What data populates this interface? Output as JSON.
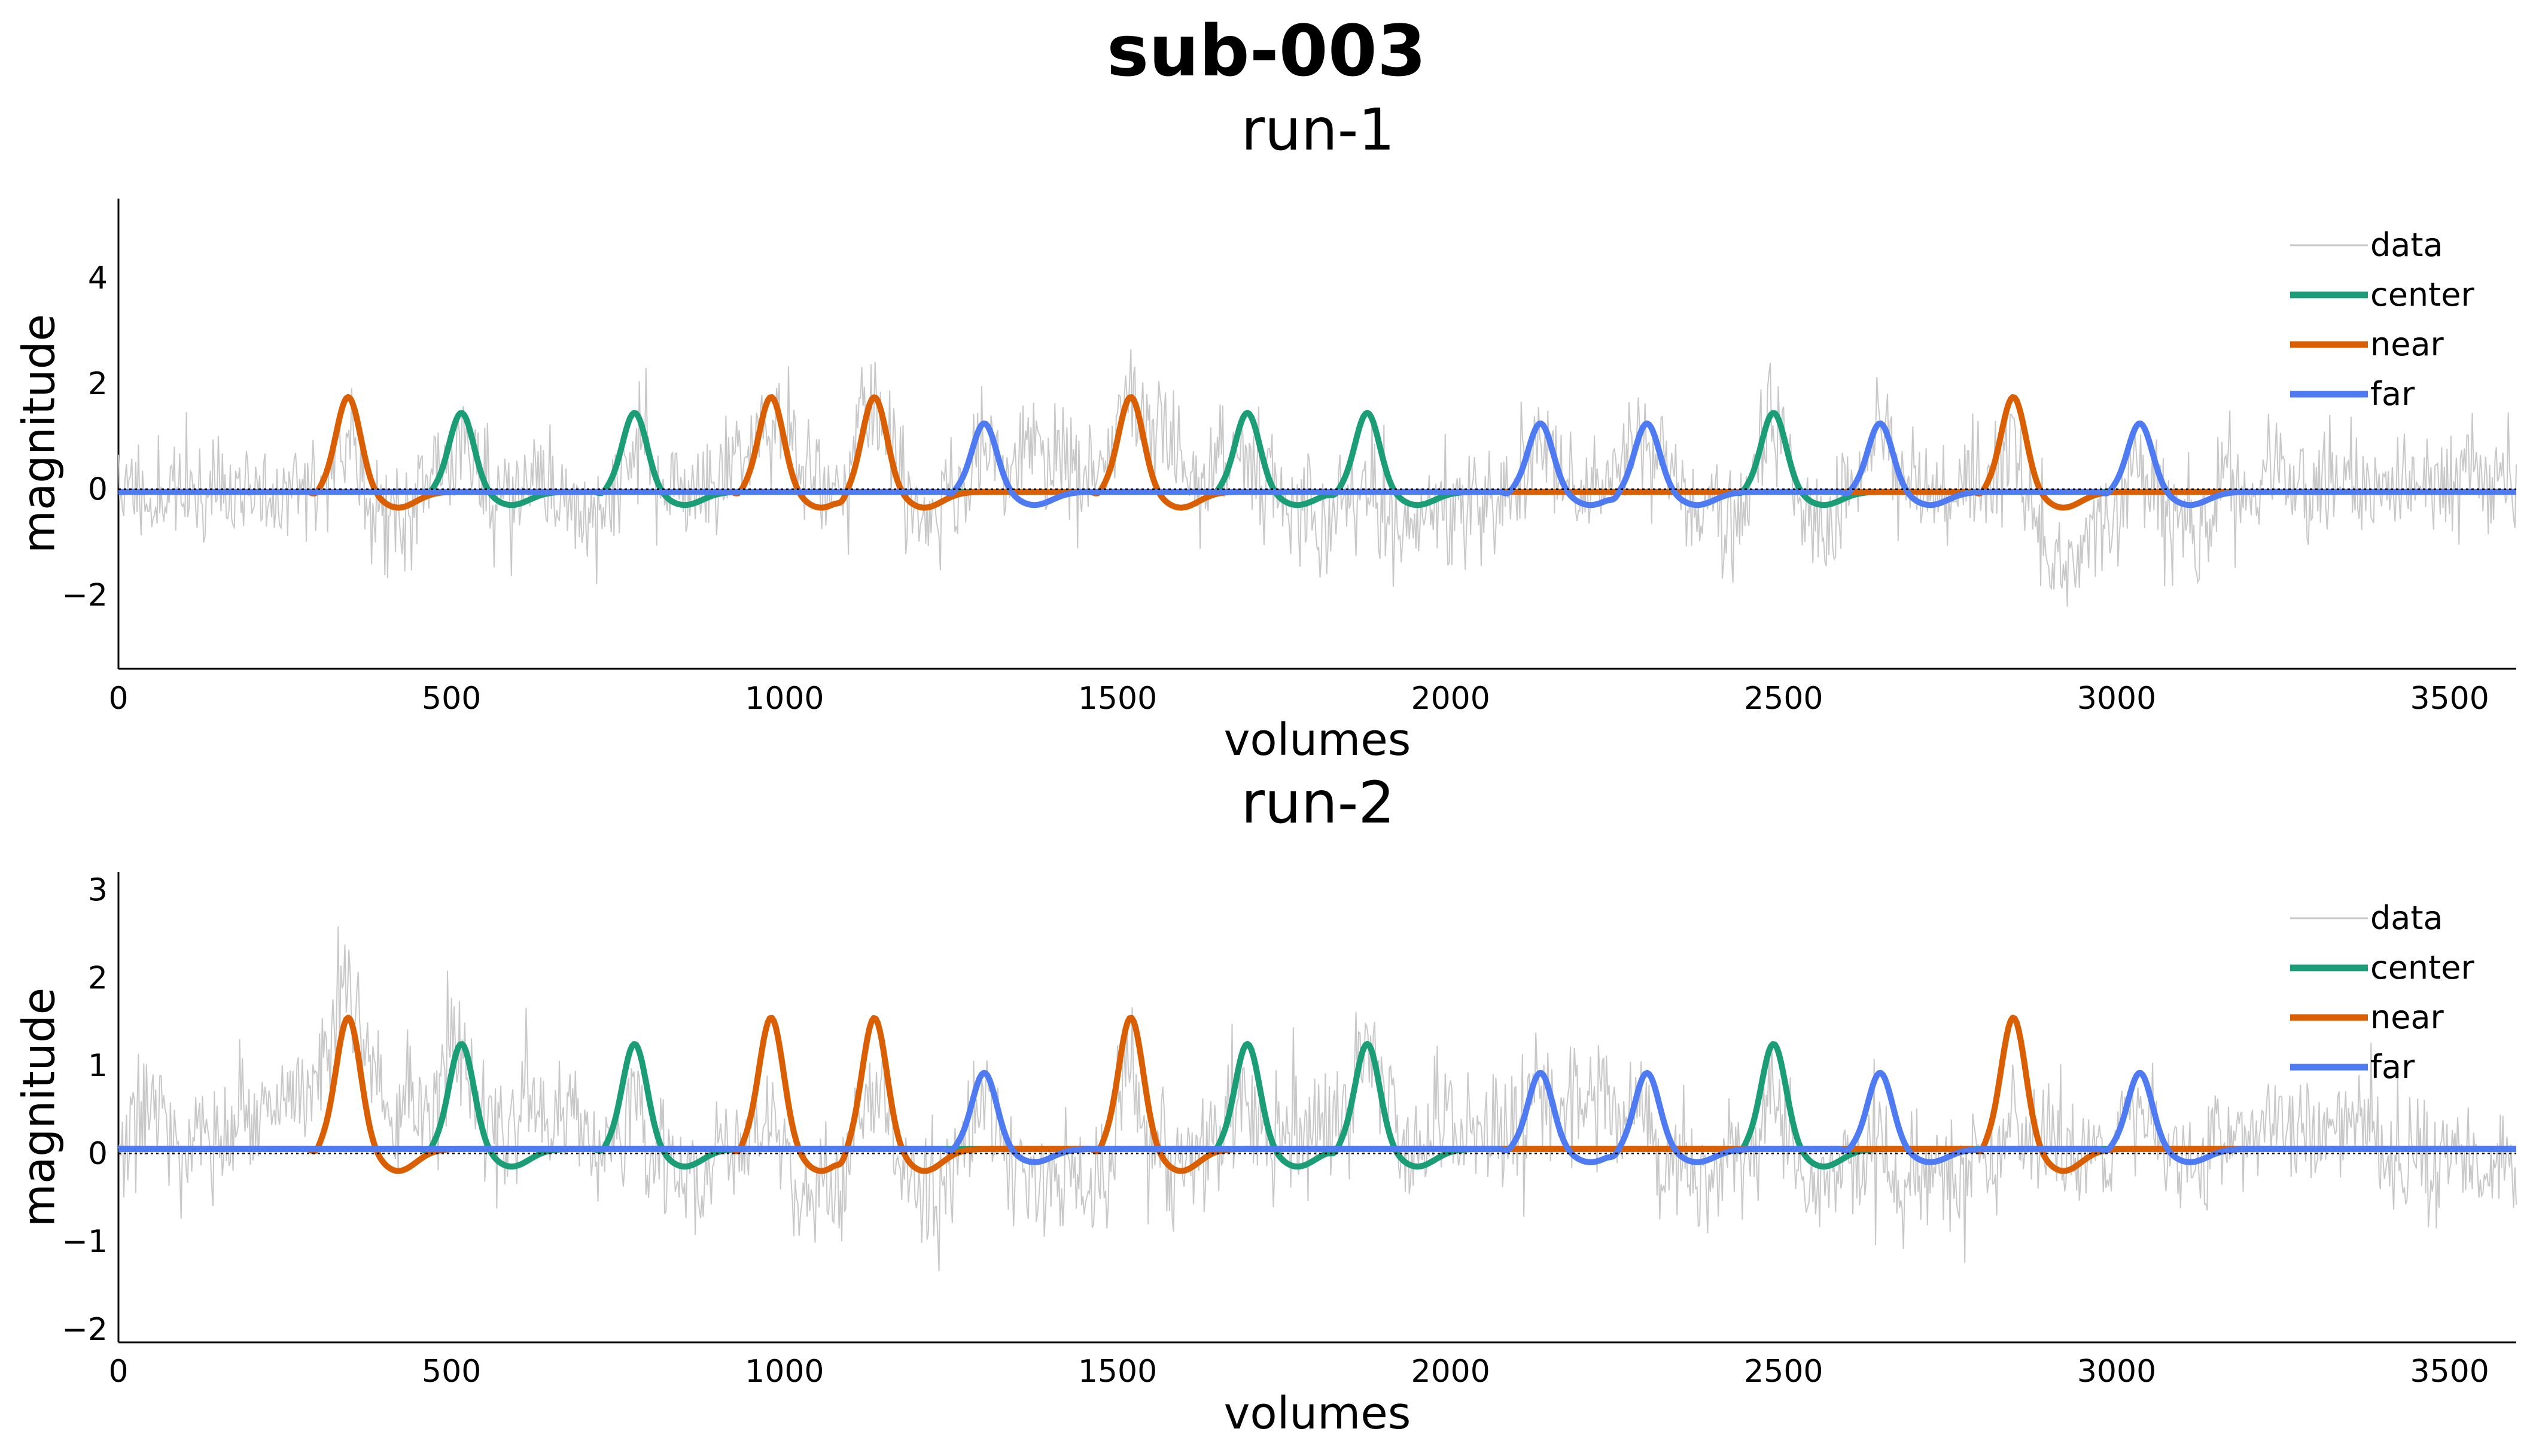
{
  "title": "sub-003",
  "colors": {
    "data": "#c8c8c8",
    "center": "#1b9e77",
    "near": "#d95f02",
    "far": "#4f7bf2",
    "zero_line": "#000000"
  },
  "chart_data": [
    {
      "type": "line",
      "title": "run-1",
      "xlabel": "volumes",
      "ylabel": "magnitude",
      "xlim": [
        0,
        3600
      ],
      "ylim": [
        -3.4,
        5.5
      ],
      "xticks": [
        0,
        500,
        1000,
        1500,
        2000,
        2500,
        3000,
        3500
      ],
      "yticks": [
        -2,
        0,
        2,
        4
      ],
      "ytick_labels": [
        "−2",
        "0",
        "2",
        "4"
      ],
      "legend_position": "top-right",
      "series": [
        {
          "name": "data",
          "kind": "noisy-trace",
          "amplitude": 0.7,
          "seed": 11
        },
        {
          "name": "center",
          "baseline": -0.05,
          "peak": 1.45,
          "trough": -0.3,
          "onsets": [
            470,
            730,
            1650,
            1830,
            2440
          ]
        },
        {
          "name": "near",
          "baseline": -0.05,
          "peak": 1.75,
          "trough": -0.35,
          "onsets": [
            300,
            935,
            1090,
            1475,
            2800
          ]
        },
        {
          "name": "far",
          "baseline": -0.05,
          "peak": 1.25,
          "trough": -0.3,
          "onsets": [
            1255,
            2090,
            2250,
            2600,
            2990
          ]
        }
      ]
    },
    {
      "type": "line",
      "title": "run-2",
      "xlabel": "volumes",
      "ylabel": "magnitude",
      "xlim": [
        0,
        3600
      ],
      "ylim": [
        -2.15,
        3.2
      ],
      "xticks": [
        0,
        500,
        1000,
        1500,
        2000,
        2500,
        3000,
        3500
      ],
      "yticks": [
        -2,
        -1,
        0,
        1,
        2,
        3
      ],
      "ytick_labels": [
        "−2",
        "−1",
        "0",
        "1",
        "2",
        "3"
      ],
      "legend_position": "top-right",
      "series": [
        {
          "name": "data",
          "kind": "noisy-trace",
          "amplitude": 0.45,
          "seed": 29
        },
        {
          "name": "center",
          "baseline": 0.05,
          "peak": 1.25,
          "trough": -0.15,
          "onsets": [
            470,
            730,
            1650,
            1830,
            2440
          ]
        },
        {
          "name": "near",
          "baseline": 0.05,
          "peak": 1.55,
          "trough": -0.2,
          "onsets": [
            300,
            935,
            1090,
            1475,
            2800
          ]
        },
        {
          "name": "far",
          "baseline": 0.05,
          "peak": 0.92,
          "trough": -0.1,
          "onsets": [
            1255,
            2090,
            2250,
            2600,
            2990
          ]
        }
      ]
    }
  ]
}
